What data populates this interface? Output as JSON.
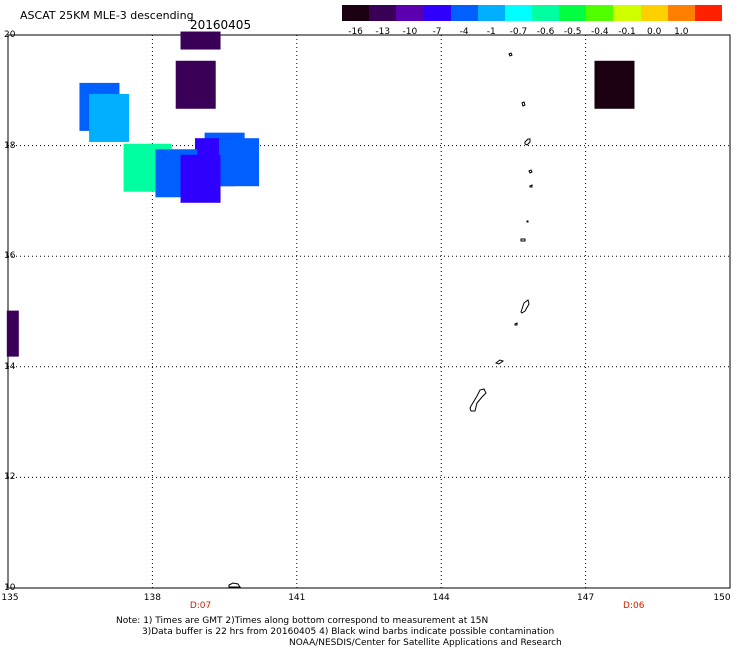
{
  "header": {
    "title": "ASCAT 25KM MLE-3 descending",
    "date": "20160405"
  },
  "colorbar": {
    "labels": [
      "-16",
      "-13",
      "-10",
      "-7",
      "-4",
      "-1",
      "-0.7",
      "-0.6",
      "-0.5",
      "-0.4",
      "-0.1",
      "0.0",
      "1.0"
    ],
    "colors": [
      "#1a0010",
      "#3a0058",
      "#5a00b0",
      "#3000ff",
      "#0060ff",
      "#00b0ff",
      "#00ffff",
      "#00ffa0",
      "#00ff40",
      "#50ff00",
      "#d0ff00",
      "#ffd000",
      "#ff8000",
      "#ff2000"
    ]
  },
  "axes": {
    "lat_labels": [
      "20",
      "18",
      "16",
      "14",
      "12",
      "10"
    ],
    "lon_labels": [
      "135",
      "138",
      "141",
      "144",
      "147",
      "150"
    ],
    "time_labels": [
      {
        "text": "D:07",
        "lon": 139
      },
      {
        "text": "D:06",
        "lon": 148
      }
    ]
  },
  "notes": {
    "line1": "Note: 1) Times are GMT 2)Times along bottom correspond to measurement at 15N",
    "line2": "3)Data buffer is 22 hrs from 20160405 4) Black wind barbs indicate possible contamination",
    "line3": "NOAA/NESDIS/Center for Satellite Applications and Research"
  },
  "map_data": {
    "extent": {
      "lon_min": 135,
      "lon_max": 150,
      "lat_min": 10,
      "lat_max": 20
    },
    "cells": [
      {
        "lon": 139.0,
        "lat": 19.9,
        "value": -13
      },
      {
        "lon": 138.9,
        "lat": 19.1,
        "value": -13
      },
      {
        "lon": 136.9,
        "lat": 18.7,
        "value": -4
      },
      {
        "lon": 137.1,
        "lat": 18.5,
        "value": -1
      },
      {
        "lon": 137.9,
        "lat": 17.6,
        "value": -0.6
      },
      {
        "lon": 139.5,
        "lat": 17.8,
        "value": -4
      },
      {
        "lon": 139.3,
        "lat": 17.7,
        "value": -7
      },
      {
        "lon": 139.8,
        "lat": 17.7,
        "value": -4
      },
      {
        "lon": 138.5,
        "lat": 17.5,
        "value": -4
      },
      {
        "lon": 139.0,
        "lat": 17.4,
        "value": -7
      },
      {
        "lon": 147.6,
        "lat": 19.1,
        "value": -16
      },
      {
        "lon": 135.1,
        "lat": 14.6,
        "value": -13
      }
    ]
  }
}
